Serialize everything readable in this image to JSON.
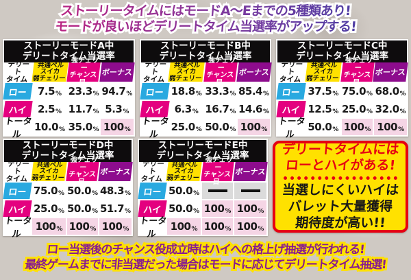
{
  "header": {
    "line1": "ストーリータイムにはモードA〜Eまでの5種類あり!",
    "line2": "モードが良いほどデリートタイム当選率がアップする!"
  },
  "table_common": {
    "title_line2": "デリートタイム当選率",
    "col_headers": {
      "label": "デリート\nタイム",
      "common_bell": "共通ベル\nスイカ\n弱チェリー",
      "strong_cherry": "強チェリー\nチャンス目",
      "bonus": "ボーナス"
    },
    "row_labels": {
      "low": "ロー",
      "high": "ハイ",
      "total": "トータル"
    },
    "percent_suffix": "%",
    "dash_char": "—"
  },
  "tables": [
    {
      "mode": "A",
      "title_line1": "ストーリーモードA中",
      "rows": [
        {
          "label": "low",
          "cells": [
            {
              "v": "7.5"
            },
            {
              "v": "23.3"
            },
            {
              "v": "94.7"
            }
          ]
        },
        {
          "label": "high",
          "cells": [
            {
              "v": "2.5"
            },
            {
              "v": "11.7"
            },
            {
              "v": "5.3"
            }
          ]
        },
        {
          "label": "total",
          "cells": [
            {
              "v": "10.0"
            },
            {
              "v": "35.0"
            },
            {
              "v": "100",
              "hl": true
            }
          ]
        }
      ]
    },
    {
      "mode": "B",
      "title_line1": "ストーリーモードB中",
      "rows": [
        {
          "label": "low",
          "cells": [
            {
              "v": "18.8"
            },
            {
              "v": "33.3"
            },
            {
              "v": "85.4"
            }
          ]
        },
        {
          "label": "high",
          "cells": [
            {
              "v": "6.3"
            },
            {
              "v": "16.7"
            },
            {
              "v": "14.6"
            }
          ]
        },
        {
          "label": "total",
          "cells": [
            {
              "v": "25.0"
            },
            {
              "v": "50.0"
            },
            {
              "v": "100",
              "hl": true
            }
          ]
        }
      ]
    },
    {
      "mode": "C",
      "title_line1": "ストーリーモードC中",
      "rows": [
        {
          "label": "low",
          "cells": [
            {
              "v": "37.5"
            },
            {
              "v": "75.0"
            },
            {
              "v": "68.0"
            }
          ]
        },
        {
          "label": "high",
          "cells": [
            {
              "v": "12.5"
            },
            {
              "v": "25.0"
            },
            {
              "v": "32.0"
            }
          ]
        },
        {
          "label": "total",
          "cells": [
            {
              "v": "50.0"
            },
            {
              "v": "100",
              "hl": true
            },
            {
              "v": "100",
              "hl": true
            }
          ]
        }
      ]
    },
    {
      "mode": "D",
      "title_line1": "ストーリーモードD中",
      "rows": [
        {
          "label": "low",
          "cells": [
            {
              "v": "75.0"
            },
            {
              "v": "50.0"
            },
            {
              "v": "48.3"
            }
          ]
        },
        {
          "label": "high",
          "cells": [
            {
              "v": "25.0"
            },
            {
              "v": "50.0"
            },
            {
              "v": "51.7"
            }
          ]
        },
        {
          "label": "total",
          "cells": [
            {
              "v": "100",
              "hl": true
            },
            {
              "v": "100",
              "hl": true
            },
            {
              "v": "100",
              "hl": true
            }
          ]
        }
      ]
    },
    {
      "mode": "E",
      "title_line1": "ストーリーモードE中",
      "rows": [
        {
          "label": "low",
          "cells": [
            {
              "v": "50.0"
            },
            {
              "dash": true
            },
            {
              "dash": true
            }
          ]
        },
        {
          "label": "high",
          "cells": [
            {
              "v": "50.0"
            },
            {
              "v": "100",
              "hl": true
            },
            {
              "v": "100",
              "hl": true
            }
          ]
        },
        {
          "label": "total",
          "cells": [
            {
              "v": "100",
              "hl": true
            },
            {
              "v": "100",
              "hl": true
            },
            {
              "v": "100",
              "hl": true
            }
          ]
        }
      ]
    }
  ],
  "info_box": {
    "title_line1": "デリートタイムには",
    "title_line2": "ローとハイがある!",
    "body_line1": "当選しにくいハイは",
    "body_line2": "バレット大量獲得",
    "body_line3": "期待度が高い!!"
  },
  "footer": {
    "line1": "ロー当選後のチャンス役成立時はハイへの格上げ抽選が行われる!",
    "line2": "最終ゲームまでに非当選だった場合はモードに応じてデリートタイム抽選!"
  },
  "colors": {
    "row_low_blue": "#29a9e0",
    "row_high_magenta": "#e4007f",
    "header_yellow": "#ffe100",
    "header_magenta": "#e4007f",
    "header_purple": "#8d0c8d",
    "highlight_pink": "#f5d5e5",
    "dash_gray": "#dbdbdb",
    "info_box_red": "#e60012",
    "title_bar_black": "#0e0c0d"
  }
}
